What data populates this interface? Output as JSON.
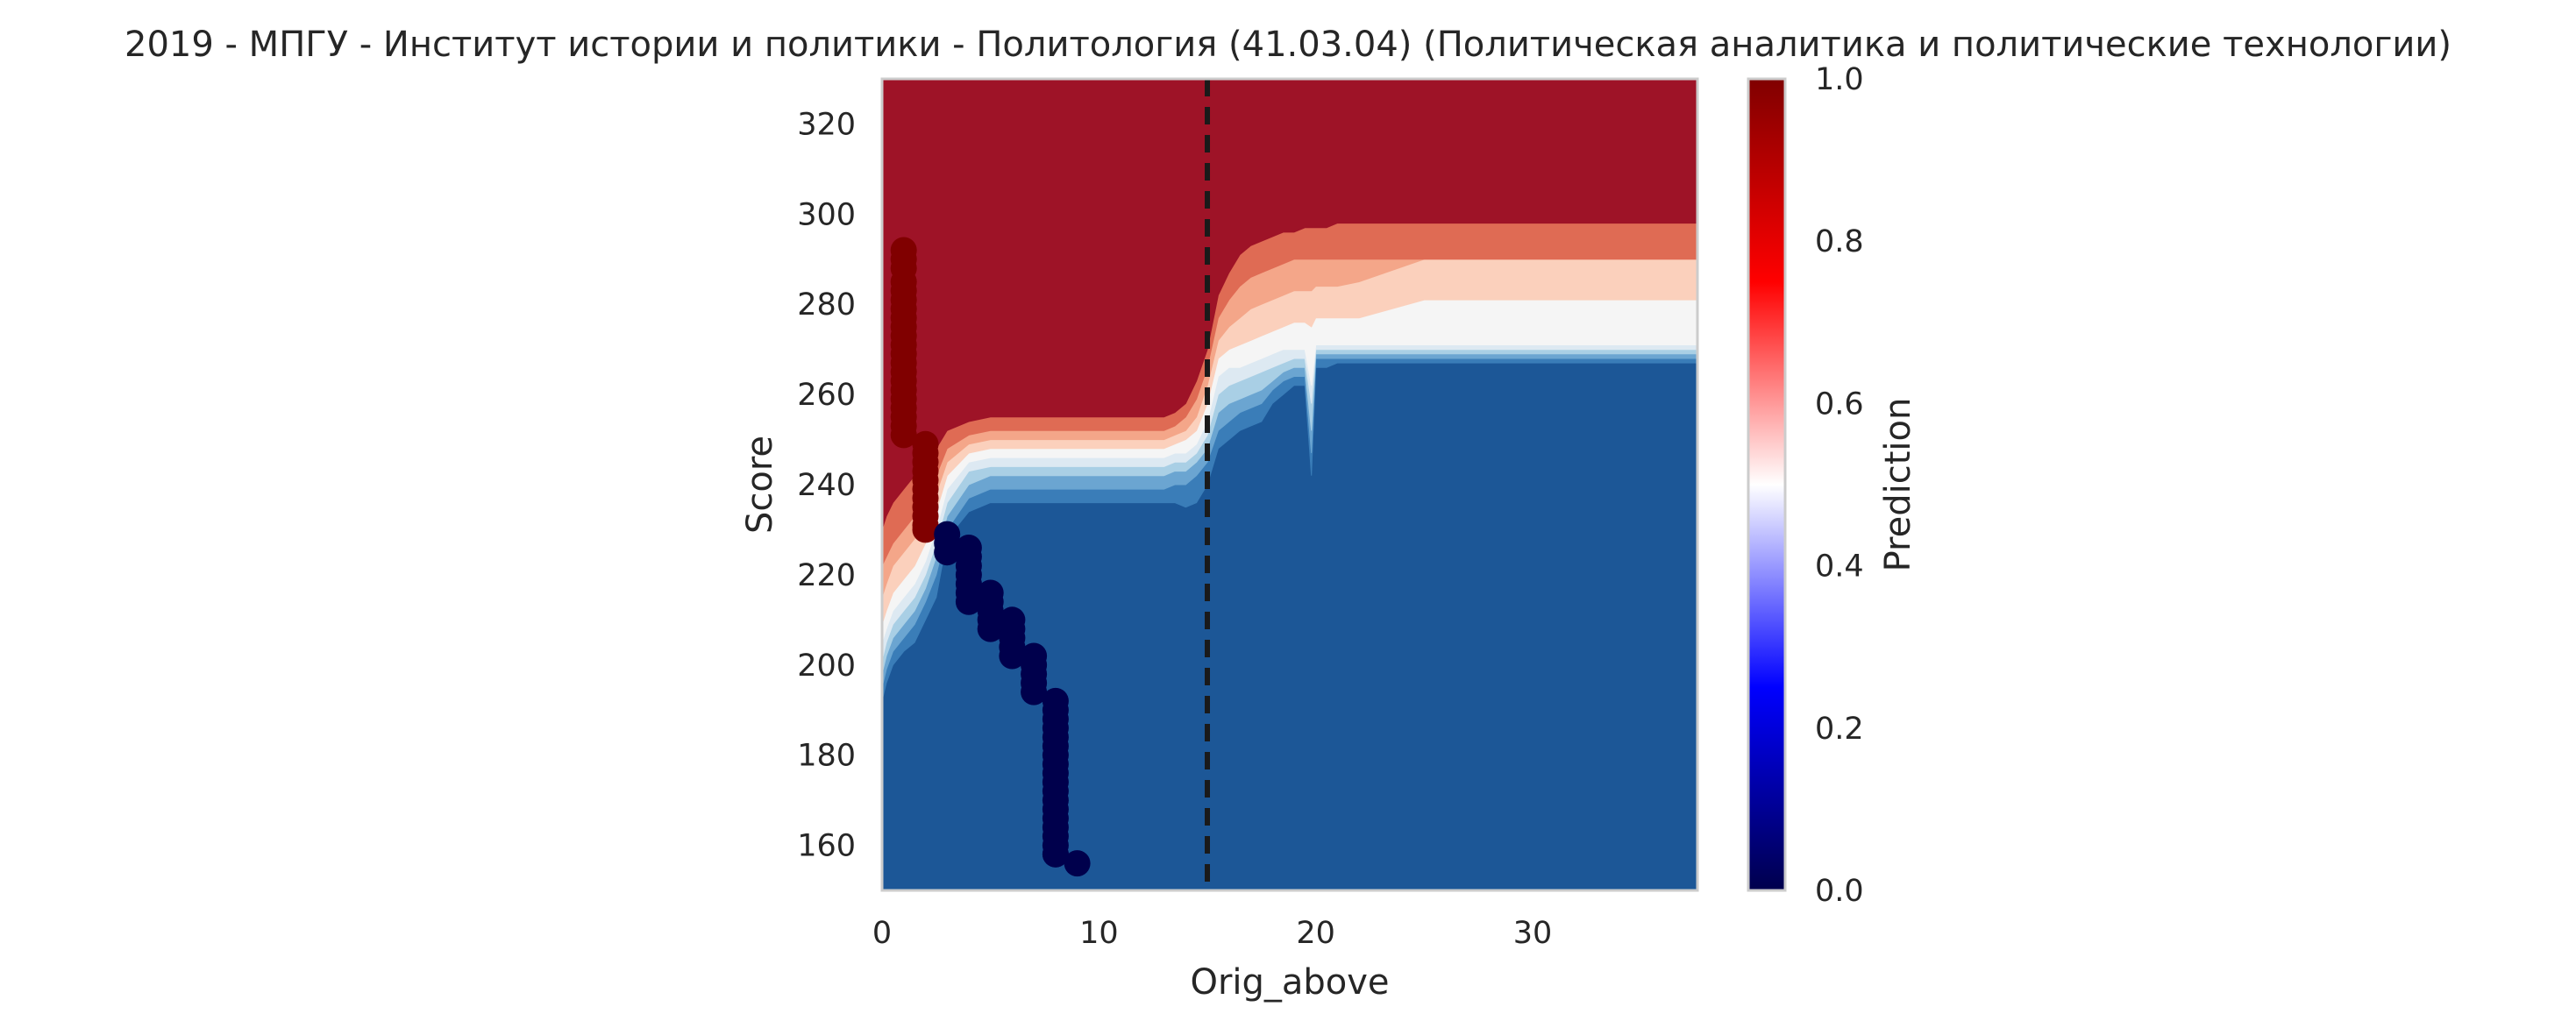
{
  "chart_data": {
    "type": "scatter",
    "title": "2019 - МПГУ - Институт истории и политики - Политология (41.03.04) (Политическая аналитика и политические технологии)",
    "xlabel": "Orig_above",
    "ylabel": "Score",
    "xlim": [
      0,
      37.6
    ],
    "ylim": [
      150,
      330
    ],
    "xticks": [
      "0",
      "10",
      "20",
      "30"
    ],
    "yticks": [
      "160",
      "180",
      "200",
      "220",
      "240",
      "260",
      "280",
      "300",
      "320"
    ],
    "grid": false,
    "vline": {
      "x": 15,
      "style": "dashed",
      "color": "#1a1a1a"
    },
    "colorbar": {
      "label": "Prediction",
      "range": [
        0,
        1
      ],
      "ticks": [
        "0.0",
        "0.2",
        "0.4",
        "0.6",
        "0.8",
        "1.0"
      ],
      "colormap": "seismic"
    },
    "contour": {
      "levels": [
        0,
        0.1,
        0.2,
        0.3,
        0.4,
        0.5,
        0.6,
        0.7,
        0.8,
        0.9,
        1.0
      ],
      "band_colors": [
        "#1c5797",
        "#3a7db8",
        "#6ba5d1",
        "#a9cfe5",
        "#dde9f2",
        "#f5f5f5",
        "#fbd0bc",
        "#f4a689",
        "#df6b54",
        "#9e1327"
      ],
      "boundaries": [
        {
          "x": [
            0,
            0.2,
            0.5,
            1,
            1.5,
            2,
            2.5,
            3,
            4,
            5,
            6,
            7,
            8,
            9,
            10,
            11,
            12,
            13,
            13.5,
            14,
            14.5,
            15,
            15.5,
            16,
            16.5,
            17,
            17.5,
            18,
            18.5,
            19,
            19.5,
            19.8,
            20,
            20.5,
            21,
            22,
            25,
            30,
            37.6
          ],
          "y": [
            192,
            196,
            200,
            203,
            205,
            210,
            215,
            228,
            234,
            236,
            236,
            236,
            236,
            236,
            236,
            236,
            236,
            236,
            236,
            235,
            236,
            240,
            248,
            250,
            252,
            253,
            254,
            258,
            260,
            262,
            262,
            242,
            266,
            266,
            267,
            267,
            267,
            267,
            267
          ]
        },
        {
          "x": [
            0,
            0.2,
            0.5,
            1,
            1.5,
            2,
            2.5,
            3,
            4,
            5,
            6,
            7,
            8,
            9,
            10,
            11,
            12,
            13,
            13.5,
            14,
            14.5,
            15,
            15.5,
            16,
            16.5,
            17,
            17.5,
            18,
            18.5,
            19,
            19.5,
            19.8,
            20,
            20.5,
            21,
            22,
            25,
            30,
            37.6
          ],
          "y": [
            195,
            199,
            203,
            206,
            209,
            214,
            220,
            230,
            237,
            239,
            239,
            239,
            239,
            239,
            239,
            239,
            239,
            239,
            240,
            240,
            242,
            245,
            252,
            254,
            256,
            257,
            258,
            261,
            263,
            264,
            264,
            247,
            268,
            268,
            268,
            268,
            268,
            268,
            268
          ]
        },
        {
          "x": [
            0,
            0.2,
            0.5,
            1,
            1.5,
            2,
            2.5,
            3,
            4,
            5,
            6,
            7,
            8,
            9,
            10,
            11,
            12,
            13,
            13.5,
            14,
            14.5,
            15,
            15.5,
            16,
            16.5,
            17,
            17.5,
            18,
            18.5,
            19,
            19.5,
            19.8,
            20,
            20.5,
            21,
            22,
            25,
            30,
            37.6
          ],
          "y": [
            198,
            202,
            206,
            209,
            212,
            217,
            224,
            233,
            240,
            242,
            242,
            242,
            242,
            242,
            242,
            242,
            242,
            242,
            243,
            243,
            245,
            248,
            256,
            258,
            259,
            260,
            261,
            263,
            265,
            266,
            266,
            252,
            269,
            269,
            269,
            269,
            269,
            269,
            269
          ]
        },
        {
          "x": [
            0,
            0.2,
            0.5,
            1,
            1.5,
            2,
            2.5,
            3,
            4,
            5,
            6,
            7,
            8,
            9,
            10,
            11,
            12,
            13,
            13.5,
            14,
            14.5,
            15,
            15.5,
            16,
            16.5,
            17,
            17.5,
            18,
            18.5,
            19,
            19.5,
            19.8,
            20,
            20.5,
            21,
            22,
            25,
            30,
            37.6
          ],
          "y": [
            201,
            205,
            209,
            212,
            215,
            220,
            227,
            236,
            243,
            244,
            244,
            244,
            244,
            244,
            244,
            244,
            244,
            244,
            245,
            245,
            247,
            251,
            260,
            262,
            263,
            264,
            265,
            266,
            267,
            268,
            268,
            258,
            270,
            270,
            270,
            270,
            270,
            270,
            270
          ]
        },
        {
          "x": [
            0,
            0.2,
            0.5,
            1,
            1.5,
            2,
            2.5,
            3,
            4,
            5,
            6,
            7,
            8,
            9,
            10,
            11,
            12,
            13,
            13.5,
            14,
            14.5,
            15,
            15.5,
            16,
            16.5,
            17,
            17.5,
            18,
            18.5,
            19,
            19.5,
            19.8,
            20,
            20.5,
            21,
            22,
            25,
            30,
            37.6
          ],
          "y": [
            205,
            208,
            212,
            215,
            218,
            223,
            230,
            239,
            245,
            246,
            246,
            246,
            246,
            246,
            246,
            246,
            246,
            246,
            247,
            247,
            249,
            254,
            264,
            266,
            266,
            267,
            268,
            269,
            270,
            270,
            270,
            262,
            271,
            271,
            271,
            271,
            271,
            271,
            271
          ]
        },
        {
          "x": [
            0,
            0.2,
            0.5,
            1,
            1.5,
            2,
            2.5,
            3,
            4,
            5,
            6,
            7,
            8,
            9,
            10,
            11,
            12,
            13,
            13.5,
            14,
            14.5,
            15,
            15.5,
            16,
            16.5,
            17,
            17.5,
            18,
            18.5,
            19,
            19.5,
            19.8,
            20,
            20.5,
            21,
            22,
            25,
            30,
            37.6
          ],
          "y": [
            209,
            212,
            216,
            219,
            222,
            227,
            234,
            242,
            247,
            248,
            248,
            248,
            248,
            248,
            248,
            248,
            248,
            248,
            249,
            250,
            252,
            258,
            268,
            270,
            271,
            272,
            273,
            274,
            275,
            276,
            276,
            275,
            277,
            277,
            277,
            277,
            281,
            281,
            281
          ]
        },
        {
          "x": [
            0,
            0.2,
            0.5,
            1,
            1.5,
            2,
            2.5,
            3,
            4,
            5,
            6,
            7,
            8,
            9,
            10,
            11,
            12,
            13,
            13.5,
            14,
            14.5,
            15,
            15.5,
            16,
            16.5,
            17,
            17.5,
            18,
            18.5,
            19,
            19.5,
            19.8,
            20,
            20.5,
            21,
            22,
            25,
            30,
            37.6
          ],
          "y": [
            215,
            218,
            222,
            225,
            228,
            233,
            238,
            245,
            249,
            250,
            250,
            250,
            250,
            250,
            250,
            250,
            250,
            250,
            251,
            252,
            255,
            262,
            272,
            275,
            277,
            279,
            280,
            281,
            282,
            283,
            283,
            283,
            284,
            284,
            284,
            285,
            290,
            290,
            290
          ]
        },
        {
          "x": [
            0,
            0.2,
            0.5,
            1,
            1.5,
            2,
            2.5,
            3,
            4,
            5,
            6,
            7,
            8,
            9,
            10,
            11,
            12,
            13,
            13.5,
            14,
            14.5,
            15,
            15.5,
            16,
            16.5,
            17,
            17.5,
            18,
            18.5,
            19,
            19.5,
            19.8,
            20,
            20.5,
            21,
            22,
            25,
            30,
            37.6
          ],
          "y": [
            222,
            224,
            227,
            230,
            233,
            238,
            242,
            248,
            251,
            252,
            252,
            252,
            252,
            252,
            252,
            252,
            252,
            252,
            253,
            255,
            259,
            266,
            277,
            281,
            284,
            286,
            287,
            288,
            289,
            290,
            290,
            290,
            290,
            290,
            290,
            290,
            290,
            290,
            290
          ]
        },
        {
          "x": [
            0,
            0.2,
            0.5,
            1,
            1.5,
            2,
            2.5,
            3,
            4,
            5,
            6,
            7,
            8,
            9,
            10,
            11,
            12,
            13,
            13.5,
            14,
            14.5,
            15,
            15.5,
            16,
            16.5,
            17,
            17.5,
            18,
            18.5,
            19,
            19.5,
            19.8,
            20,
            20.5,
            21,
            22,
            25,
            30,
            37.6
          ],
          "y": [
            230,
            233,
            236,
            239,
            242,
            246,
            248,
            252,
            254,
            255,
            255,
            255,
            255,
            255,
            255,
            255,
            255,
            255,
            256,
            258,
            263,
            270,
            282,
            287,
            291,
            293,
            294,
            295,
            296,
            296,
            297,
            297,
            297,
            297,
            298,
            298,
            298,
            298,
            298
          ]
        }
      ]
    },
    "series": [
      {
        "class": 1,
        "color": "#800000",
        "x": [
          1,
          1,
          1,
          1,
          1,
          1,
          1,
          1,
          1,
          1,
          1,
          1,
          1,
          1,
          1,
          1,
          1,
          1,
          1,
          1,
          1,
          2,
          2,
          2,
          2,
          2,
          2,
          2,
          2,
          2,
          2,
          2
        ],
        "y": [
          292,
          290,
          288,
          285,
          283,
          281,
          279,
          277,
          275,
          273,
          271,
          269,
          267,
          265,
          263,
          261,
          259,
          257,
          255,
          253,
          251,
          249,
          247,
          245,
          243,
          241,
          239,
          237,
          235,
          233,
          231,
          230
        ]
      },
      {
        "class": 0,
        "color": "#00004c",
        "x": [
          3,
          3,
          3,
          4,
          4,
          4,
          4,
          4,
          4,
          4,
          5,
          5,
          5,
          5,
          5,
          6,
          6,
          6,
          6,
          6,
          7,
          7,
          7,
          7,
          7,
          8,
          8,
          8,
          8,
          8,
          8,
          8,
          8,
          8,
          8,
          8,
          8,
          8,
          8,
          8,
          8,
          8,
          8,
          8,
          9
        ],
        "y": [
          229,
          227,
          225,
          226,
          224,
          222,
          220,
          218,
          216,
          214,
          214,
          212,
          210,
          208,
          216,
          208,
          206,
          204,
          202,
          210,
          202,
          200,
          198,
          196,
          194,
          192,
          190,
          188,
          186,
          184,
          182,
          180,
          178,
          176,
          174,
          172,
          170,
          168,
          166,
          164,
          162,
          160,
          158,
          158,
          156
        ]
      }
    ]
  }
}
